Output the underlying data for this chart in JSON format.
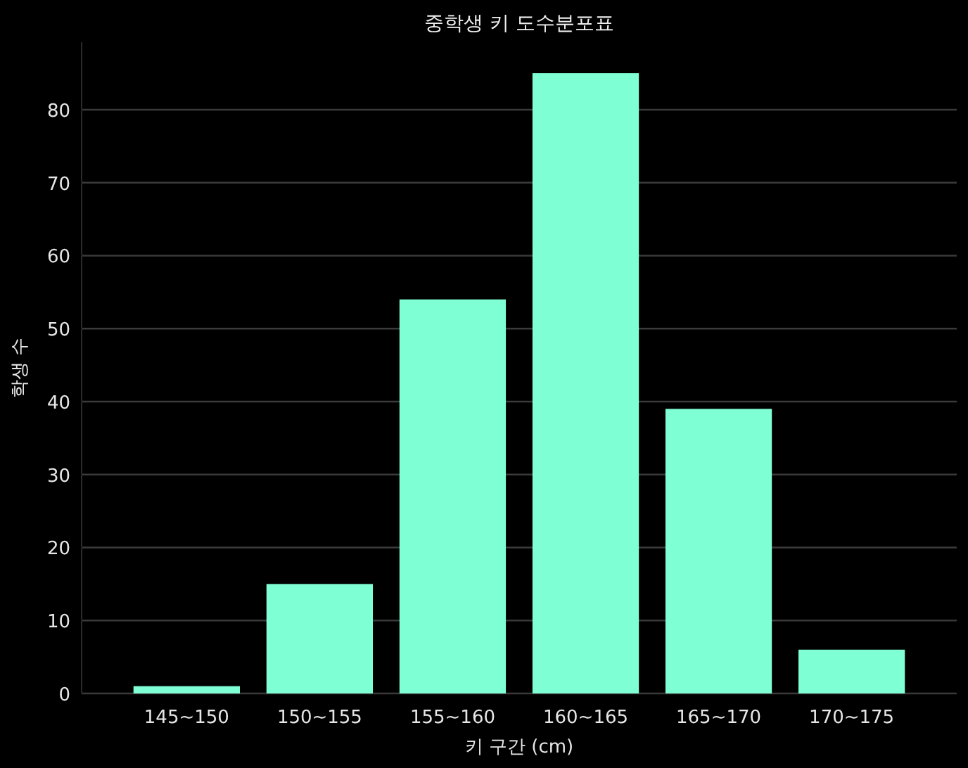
{
  "chart_data": {
    "type": "bar",
    "title": "중학생 키 도수분포표",
    "xlabel": "키 구간 (cm)",
    "ylabel": "학생 수",
    "categories": [
      "145~150",
      "150~155",
      "155~160",
      "160~165",
      "165~170",
      "170~175"
    ],
    "values": [
      1,
      15,
      54,
      85,
      39,
      6
    ],
    "color": "#7fffd4",
    "ylim": [
      0,
      89.25
    ],
    "yticks": [
      0,
      10,
      20,
      30,
      40,
      50,
      60,
      70,
      80
    ],
    "grid": "y"
  }
}
